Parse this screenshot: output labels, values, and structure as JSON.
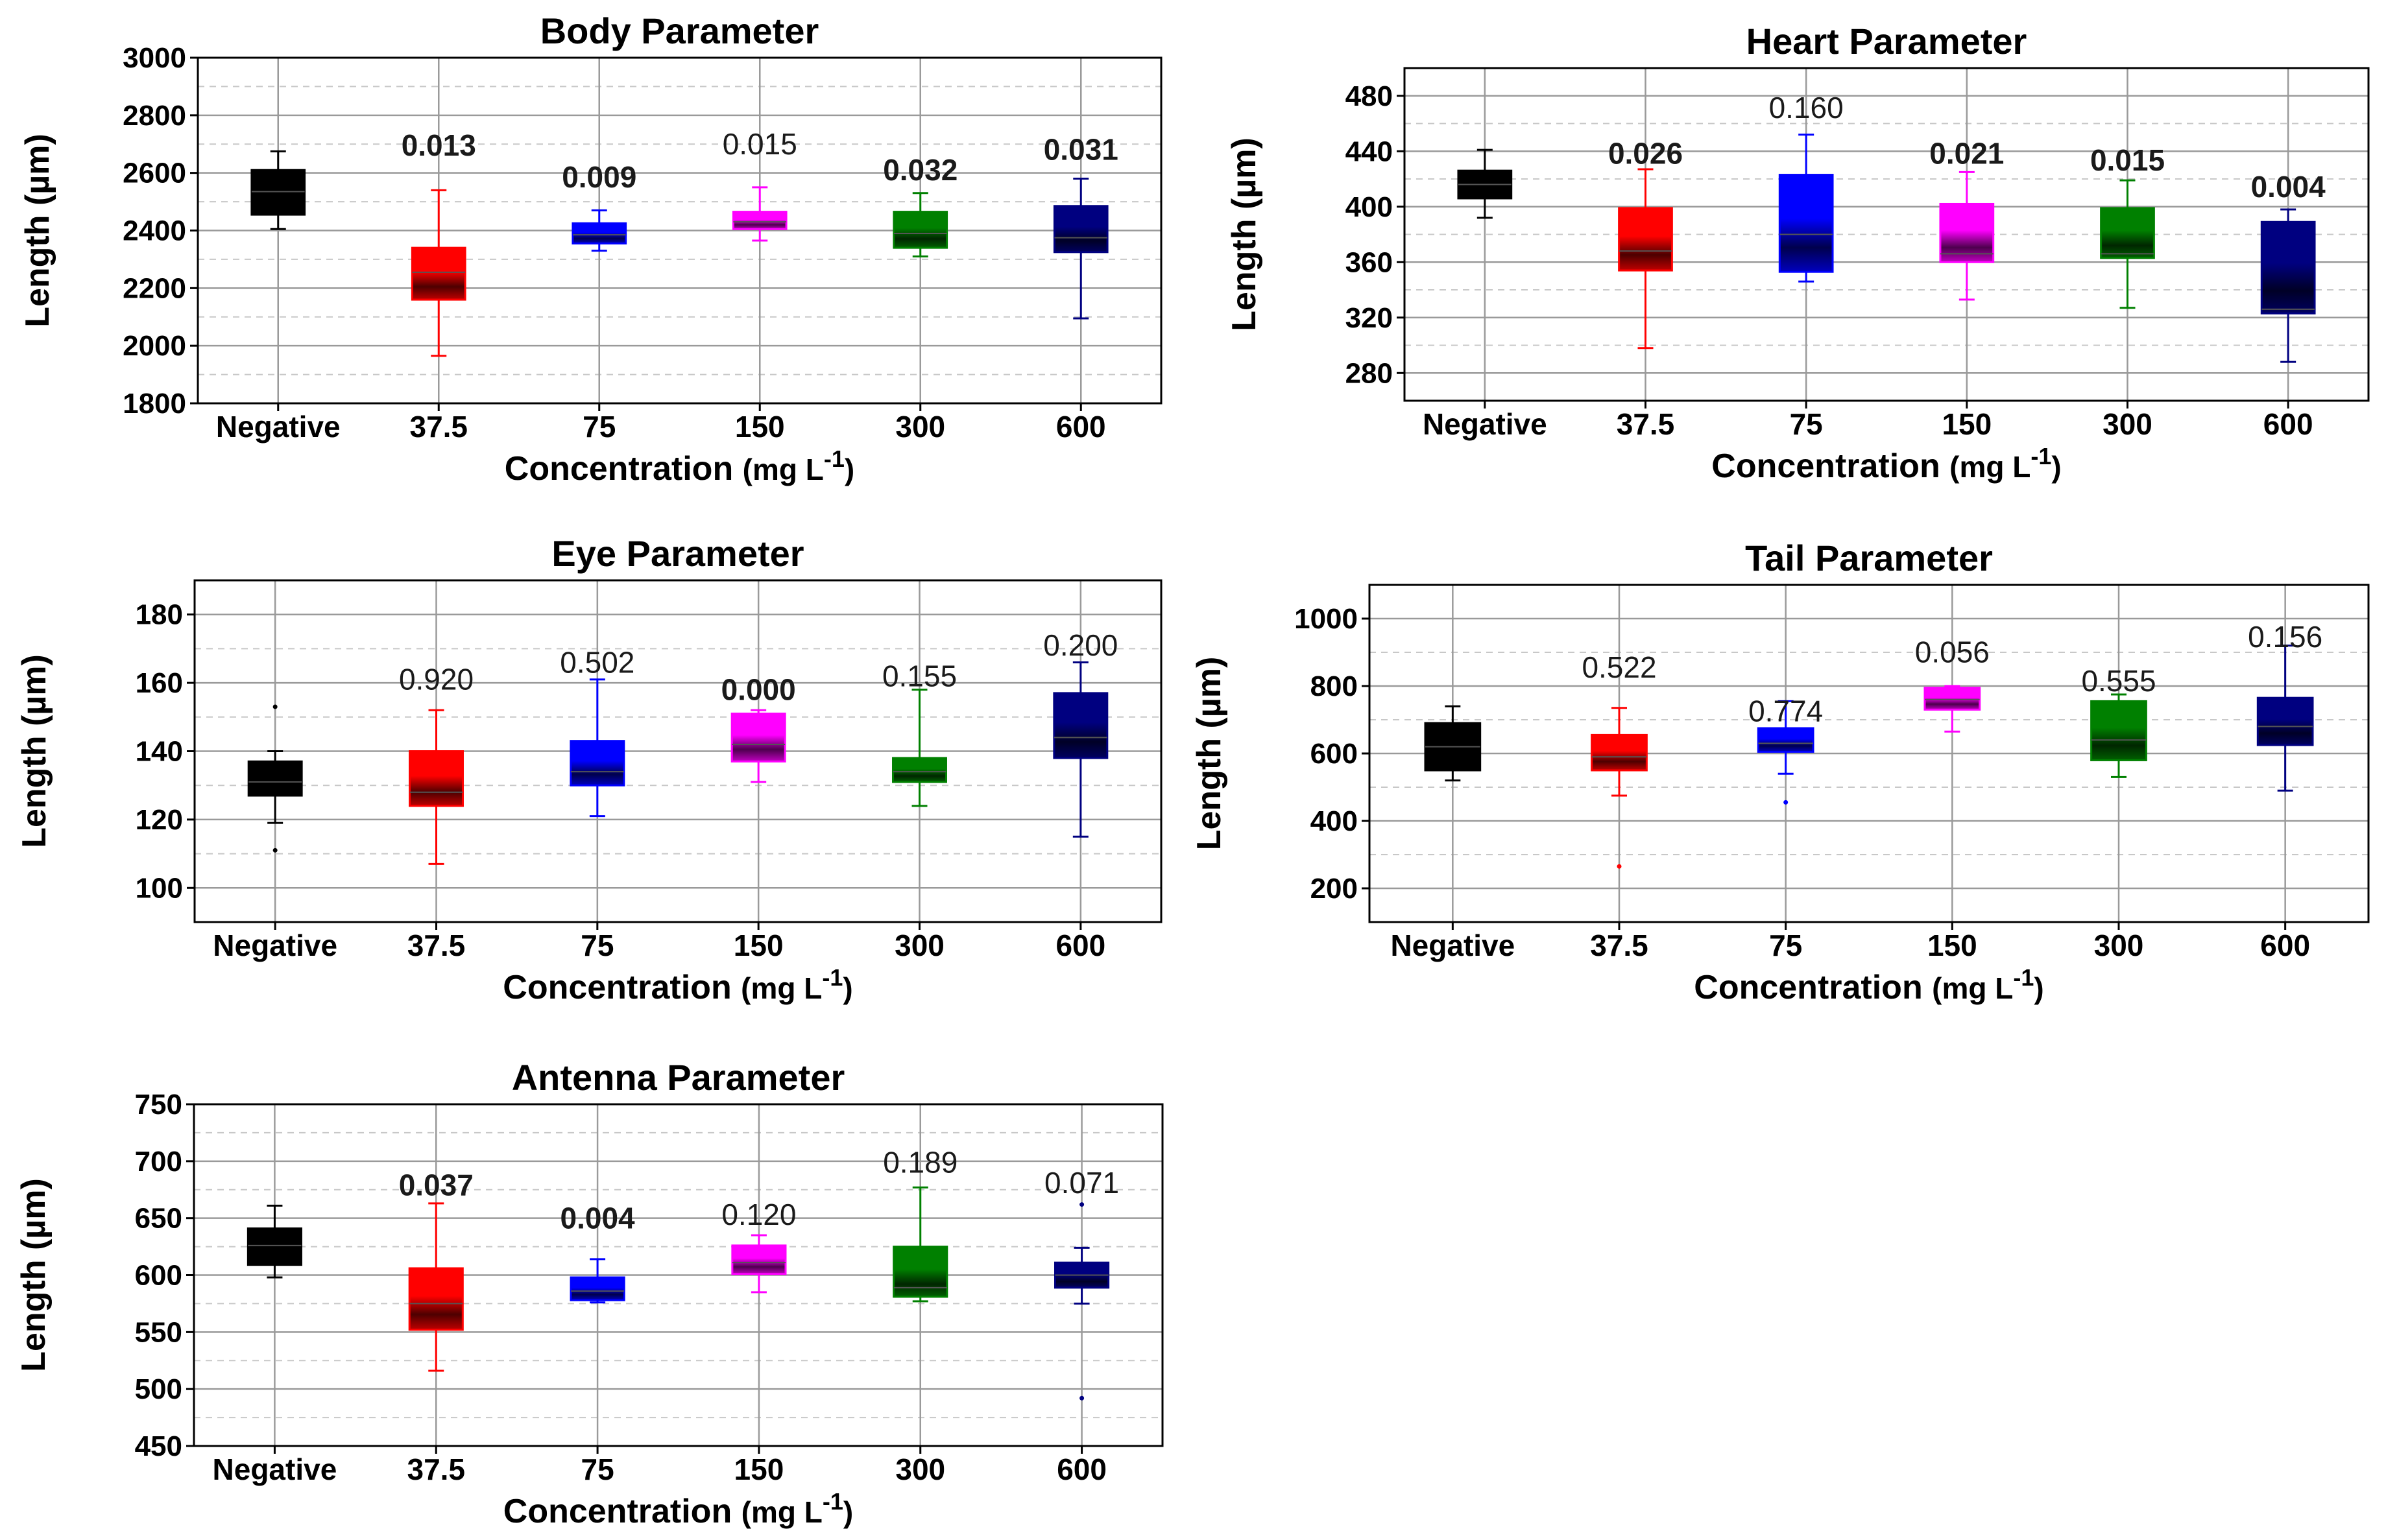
{
  "chart_data": [
    {
      "id": "body",
      "type": "box",
      "title": "Body Parameter",
      "xlabel": "Concentration",
      "xlabel_unit": "(mg L",
      "xlabel_exp": "-1",
      "xlabel_close": ")",
      "ylabel": "Length (µm)",
      "categories": [
        "Negative",
        "37.5",
        "75",
        "150",
        "300",
        "600"
      ],
      "yticks": [
        1800,
        2000,
        2200,
        2400,
        2600,
        2800,
        3000
      ],
      "ylim": [
        1800,
        3000
      ],
      "minor_step": 100,
      "boxes": [
        {
          "min": 2405,
          "q1": 2455,
          "median": 2535,
          "q3": 2610,
          "max": 2675,
          "color": "#000000"
        },
        {
          "min": 1965,
          "q1": 2160,
          "median": 2255,
          "q3": 2340,
          "max": 2540,
          "color": "#ff0000"
        },
        {
          "min": 2330,
          "q1": 2355,
          "median": 2385,
          "q3": 2425,
          "max": 2470,
          "color": "#0000ff"
        },
        {
          "min": 2365,
          "q1": 2405,
          "median": 2430,
          "q3": 2465,
          "max": 2550,
          "color": "#ff00ff"
        },
        {
          "min": 2310,
          "q1": 2340,
          "median": 2390,
          "q3": 2465,
          "max": 2530,
          "color": "#008000"
        },
        {
          "min": 2095,
          "q1": 2325,
          "median": 2375,
          "q3": 2485,
          "max": 2580,
          "color": "#000080"
        }
      ],
      "outliers": [],
      "pvalues": [
        "",
        "0.013",
        "0.009",
        "0.015",
        "0.032",
        "0.031"
      ],
      "pvalue_y": [
        null,
        2660,
        2550,
        2665,
        2575,
        2645
      ],
      "pvalue_bold": [
        false,
        true,
        true,
        false,
        true,
        true
      ]
    },
    {
      "id": "heart",
      "type": "box",
      "title": "Heart Parameter",
      "xlabel": "Concentration",
      "xlabel_unit": "(mg L",
      "xlabel_exp": "-1",
      "xlabel_close": ")",
      "ylabel": "Length (µm)",
      "categories": [
        "Negative",
        "37.5",
        "75",
        "150",
        "300",
        "600"
      ],
      "yticks": [
        280,
        320,
        360,
        400,
        440,
        480
      ],
      "ylim": [
        260,
        500
      ],
      "minor_step": 20,
      "boxes": [
        {
          "min": 392,
          "q1": 406,
          "median": 416,
          "q3": 426,
          "max": 441,
          "color": "#000000"
        },
        {
          "min": 298,
          "q1": 354,
          "median": 368,
          "q3": 399,
          "max": 427,
          "color": "#ff0000"
        },
        {
          "min": 346,
          "q1": 353,
          "median": 380,
          "q3": 423,
          "max": 452,
          "color": "#0000ff"
        },
        {
          "min": 333,
          "q1": 360,
          "median": 366,
          "q3": 402,
          "max": 425,
          "color": "#ff00ff"
        },
        {
          "min": 327,
          "q1": 363,
          "median": 366,
          "q3": 399,
          "max": 419,
          "color": "#008000"
        },
        {
          "min": 288,
          "q1": 323,
          "median": 326,
          "q3": 389,
          "max": 398,
          "color": "#000080"
        }
      ],
      "outliers": [],
      "pvalues": [
        "",
        "0.026",
        "0.160",
        "0.021",
        "0.015",
        "0.004"
      ],
      "pvalue_y": [
        null,
        431,
        464,
        431,
        426,
        407
      ],
      "pvalue_bold": [
        false,
        true,
        false,
        true,
        true,
        true
      ]
    },
    {
      "id": "eye",
      "type": "box",
      "title": "Eye Parameter",
      "xlabel": "Concentration",
      "xlabel_unit": "(mg L",
      "xlabel_exp": "-1",
      "xlabel_close": ")",
      "ylabel": "Length (µm)",
      "categories": [
        "Negative",
        "37.5",
        "75",
        "150",
        "300",
        "600"
      ],
      "yticks": [
        100,
        120,
        140,
        160,
        180
      ],
      "ylim": [
        90,
        190
      ],
      "minor_step": 10,
      "boxes": [
        {
          "min": 119,
          "q1": 127,
          "median": 131,
          "q3": 137,
          "max": 140,
          "color": "#000000"
        },
        {
          "min": 107,
          "q1": 124,
          "median": 128,
          "q3": 140,
          "max": 152,
          "color": "#ff0000"
        },
        {
          "min": 121,
          "q1": 130,
          "median": 134,
          "q3": 143,
          "max": 161,
          "color": "#0000ff"
        },
        {
          "min": 131,
          "q1": 137,
          "median": 142,
          "q3": 151,
          "max": 152,
          "color": "#ff00ff"
        },
        {
          "min": 124,
          "q1": 131,
          "median": 134,
          "q3": 138,
          "max": 158,
          "color": "#008000"
        },
        {
          "min": 115,
          "q1": 138,
          "median": 144,
          "q3": 157,
          "max": 166,
          "color": "#000080"
        }
      ],
      "outliers": [
        {
          "category": 0,
          "value": 153
        },
        {
          "category": 0,
          "value": 111
        }
      ],
      "pvalues": [
        "",
        "0.920",
        "0.502",
        "0.000",
        "0.155",
        "0.200"
      ],
      "pvalue_y": [
        null,
        158,
        163,
        155,
        159,
        168
      ],
      "pvalue_bold": [
        false,
        false,
        false,
        true,
        false,
        false
      ]
    },
    {
      "id": "tail",
      "type": "box",
      "title": "Tail Parameter",
      "xlabel": "Concentration",
      "xlabel_unit": "(mg L",
      "xlabel_exp": "-1",
      "xlabel_close": ")",
      "ylabel": "Length (µm)",
      "categories": [
        "Negative",
        "37.5",
        "75",
        "150",
        "300",
        "600"
      ],
      "yticks": [
        200,
        400,
        600,
        800,
        1000
      ],
      "ylim": [
        100,
        1100
      ],
      "minor_step": 100,
      "boxes": [
        {
          "min": 520,
          "q1": 550,
          "median": 620,
          "q3": 690,
          "max": 740,
          "color": "#000000"
        },
        {
          "min": 475,
          "q1": 550,
          "median": 590,
          "q3": 655,
          "max": 735,
          "color": "#ff0000"
        },
        {
          "min": 540,
          "q1": 605,
          "median": 630,
          "q3": 675,
          "max": 755,
          "color": "#0000ff"
        },
        {
          "min": 665,
          "q1": 730,
          "median": 760,
          "q3": 795,
          "max": 800,
          "color": "#ff00ff"
        },
        {
          "min": 530,
          "q1": 580,
          "median": 640,
          "q3": 755,
          "max": 775,
          "color": "#008000"
        },
        {
          "min": 490,
          "q1": 625,
          "median": 680,
          "q3": 765,
          "max": 920,
          "color": "#000080"
        }
      ],
      "outliers": [
        {
          "category": 1,
          "value": 265
        },
        {
          "category": 2,
          "value": 455
        }
      ],
      "pvalues": [
        "",
        "0.522",
        "0.774",
        "0.056",
        "0.555",
        "0.156"
      ],
      "pvalue_y": [
        null,
        825,
        695,
        870,
        785,
        915
      ],
      "pvalue_bold": [
        false,
        false,
        false,
        false,
        false,
        false
      ]
    },
    {
      "id": "antenna",
      "type": "box",
      "title": "Antenna Parameter",
      "xlabel": "Concentration",
      "xlabel_unit": "(mg L",
      "xlabel_exp": "-1",
      "xlabel_close": ")",
      "ylabel": "Length (µm)",
      "categories": [
        "Negative",
        "37.5",
        "75",
        "150",
        "300",
        "600"
      ],
      "yticks": [
        450,
        500,
        550,
        600,
        650,
        700,
        750
      ],
      "ylim": [
        450,
        750
      ],
      "minor_step": 25,
      "boxes": [
        {
          "min": 598,
          "q1": 609,
          "median": 626,
          "q3": 641,
          "max": 661,
          "color": "#000000"
        },
        {
          "min": 516,
          "q1": 552,
          "median": 575,
          "q3": 606,
          "max": 663,
          "color": "#ff0000"
        },
        {
          "min": 576,
          "q1": 578,
          "median": 586,
          "q3": 598,
          "max": 614,
          "color": "#0000ff"
        },
        {
          "min": 585,
          "q1": 601,
          "median": 611,
          "q3": 626,
          "max": 635,
          "color": "#ff00ff"
        },
        {
          "min": 577,
          "q1": 581,
          "median": 589,
          "q3": 625,
          "max": 677,
          "color": "#008000"
        },
        {
          "min": 575,
          "q1": 589,
          "median": 600,
          "q3": 611,
          "max": 624,
          "color": "#000080"
        }
      ],
      "outliers": [
        {
          "category": 5,
          "value": 662
        },
        {
          "category": 5,
          "value": 492
        }
      ],
      "pvalues": [
        "",
        "0.037",
        "0.004",
        "0.120",
        "0.189",
        "0.071"
      ],
      "pvalue_y": [
        null,
        670,
        641,
        644,
        690,
        672
      ],
      "pvalue_bold": [
        false,
        true,
        true,
        false,
        false,
        false
      ]
    }
  ]
}
